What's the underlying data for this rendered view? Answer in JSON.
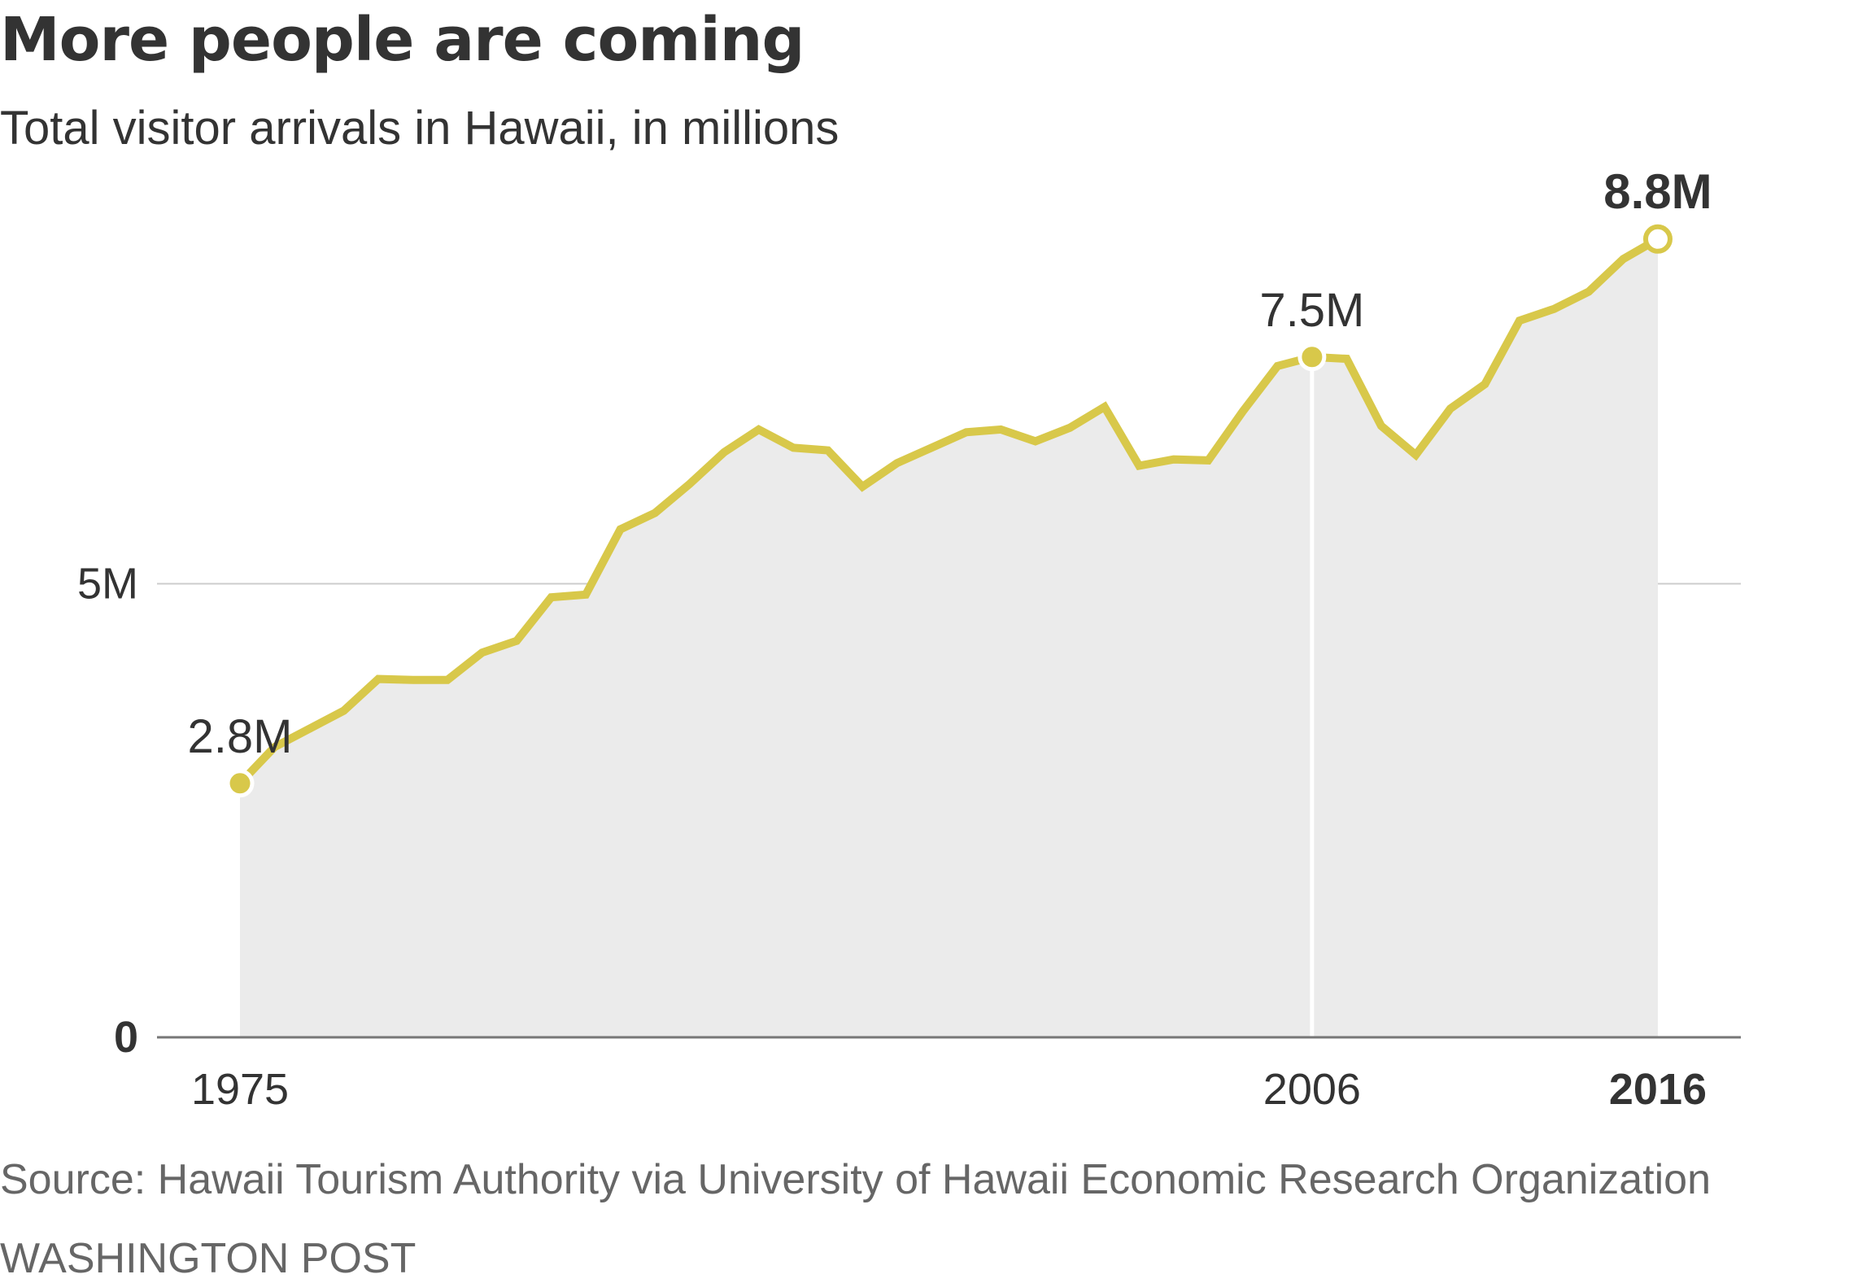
{
  "title": "More people are coming",
  "subtitle": "Total visitor arrivals in Hawaii, in millions",
  "source": "Source: Hawaii Tourism Authority via University of Hawaii Economic Research Organization",
  "credit": "WASHINGTON POST",
  "colors": {
    "line": "#d8c84a",
    "area": "#ebebeb",
    "grid": "#cccccc",
    "axis": "#777777",
    "text": "#333333",
    "muted": "#666666"
  },
  "chart_data": {
    "type": "area",
    "title": "More people are coming",
    "subtitle": "Total visitor arrivals in Hawaii, in millions",
    "xlabel": "",
    "ylabel": "",
    "xlim": [
      1972.6,
      2018.4
    ],
    "ylim": [
      0,
      10
    ],
    "grid": true,
    "legend": "none",
    "y_ticks": [
      {
        "value": 5,
        "label": "5M",
        "bold": false
      },
      {
        "value": 0,
        "label": "0",
        "bold": true
      }
    ],
    "x_ticks": [
      {
        "value": 1975,
        "label": "1975",
        "bold": false
      },
      {
        "value": 2006,
        "label": "2006",
        "bold": false
      },
      {
        "value": 2016,
        "label": "2016",
        "bold": true
      }
    ],
    "series": [
      {
        "x": [
          1975,
          1976,
          1977,
          1978,
          1979,
          1980,
          1981,
          1982,
          1983,
          1984,
          1985,
          1986,
          1987,
          1988,
          1989,
          1990,
          1991,
          1992,
          1993,
          1994,
          1995,
          1996,
          1997,
          1998,
          1999,
          2000,
          2001,
          2002,
          2003,
          2004,
          2005,
          2006,
          2007,
          2008,
          2009,
          2010,
          2011,
          2012,
          2013,
          2014,
          2015,
          2016
        ],
        "values": [
          2.8,
          3.2,
          3.4,
          3.6,
          3.95,
          3.94,
          3.94,
          4.24,
          4.37,
          4.85,
          4.88,
          5.6,
          5.78,
          6.1,
          6.45,
          6.7,
          6.5,
          6.47,
          6.07,
          6.33,
          6.5,
          6.67,
          6.7,
          6.57,
          6.72,
          6.95,
          6.3,
          6.37,
          6.36,
          6.9,
          7.4,
          7.5,
          7.48,
          6.74,
          6.42,
          6.93,
          7.2,
          7.9,
          8.03,
          8.22,
          8.58,
          8.8
        ]
      }
    ],
    "highlights": [
      {
        "x": 1975,
        "value": 2.8,
        "label": "2.8M",
        "bold": false,
        "hollow": false,
        "dropline": false
      },
      {
        "x": 2006,
        "value": 7.5,
        "label": "7.5M",
        "bold": false,
        "hollow": false,
        "dropline": true
      },
      {
        "x": 2016,
        "value": 8.8,
        "label": "8.8M",
        "bold": true,
        "hollow": true,
        "dropline": false
      }
    ]
  }
}
